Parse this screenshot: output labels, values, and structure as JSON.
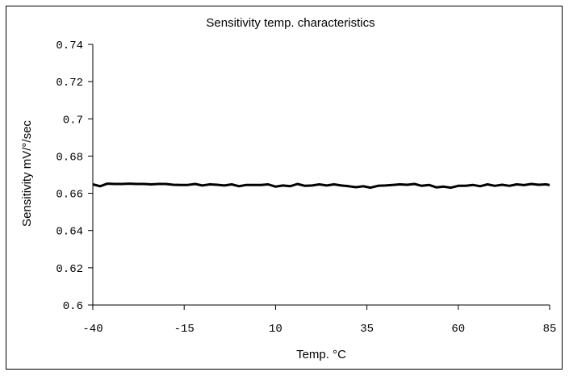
{
  "chart_data": {
    "type": "line",
    "title": "Sensitivity temp. characteristics",
    "xlabel": "Temp. °C",
    "ylabel": "Sensitivity mV/°/sec",
    "xlim": [
      -40,
      85
    ],
    "ylim": [
      0.6,
      0.74
    ],
    "x_ticks": [
      -40,
      -15,
      10,
      35,
      60,
      85
    ],
    "x_tick_labels": [
      "-40",
      "-15",
      "10",
      "35",
      "60",
      "85"
    ],
    "y_ticks": [
      0.6,
      0.62,
      0.64,
      0.66,
      0.68,
      0.7,
      0.72,
      0.74
    ],
    "y_tick_labels": [
      "0.6",
      "0.62",
      "0.64",
      "0.66",
      "0.68",
      "0.7",
      "0.72",
      "0.74"
    ],
    "grid": false,
    "line_color": "#000000",
    "series": [
      {
        "x": [
          -40,
          -38,
          -36,
          -34,
          -32,
          -30,
          -28,
          -26,
          -24,
          -22,
          -20,
          -18,
          -16,
          -14,
          -12,
          -10,
          -8,
          -6,
          -4,
          -2,
          0,
          2,
          4,
          6,
          8,
          10,
          12,
          14,
          16,
          18,
          20,
          22,
          24,
          26,
          28,
          30,
          32,
          34,
          36,
          38,
          40,
          42,
          44,
          46,
          48,
          50,
          52,
          54,
          56,
          58,
          60,
          62,
          64,
          66,
          68,
          70,
          72,
          74,
          76,
          78,
          80,
          82,
          84,
          85
        ],
        "y": [
          0.6648,
          0.6638,
          0.6652,
          0.665,
          0.665,
          0.6652,
          0.665,
          0.665,
          0.6648,
          0.665,
          0.665,
          0.6646,
          0.6645,
          0.6645,
          0.665,
          0.6642,
          0.6648,
          0.6646,
          0.6642,
          0.6648,
          0.6638,
          0.6645,
          0.6645,
          0.6645,
          0.6648,
          0.6636,
          0.6642,
          0.6638,
          0.665,
          0.664,
          0.6642,
          0.6648,
          0.6642,
          0.6648,
          0.6642,
          0.6638,
          0.6633,
          0.6638,
          0.663,
          0.664,
          0.6642,
          0.6645,
          0.6648,
          0.6646,
          0.665,
          0.664,
          0.6645,
          0.6632,
          0.6636,
          0.663,
          0.664,
          0.664,
          0.6645,
          0.6638,
          0.6648,
          0.664,
          0.6646,
          0.664,
          0.6648,
          0.6644,
          0.665,
          0.6646,
          0.6648,
          0.6644
        ]
      }
    ]
  }
}
